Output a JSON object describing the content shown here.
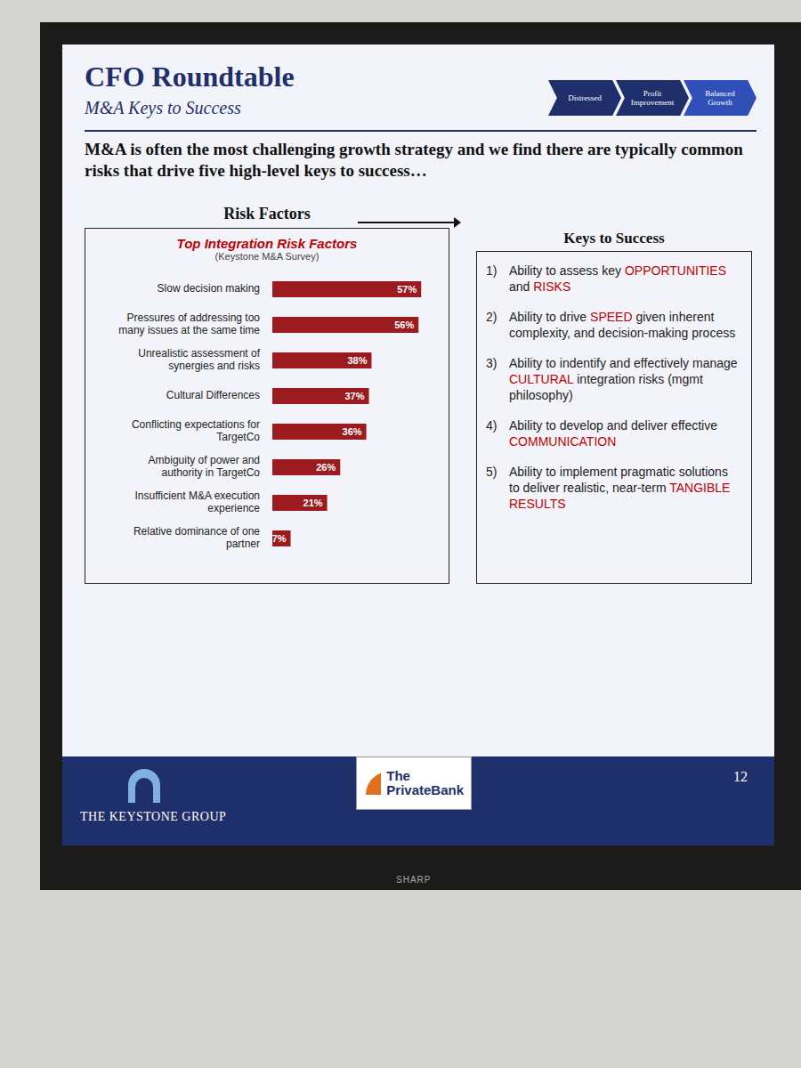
{
  "chart_data": {
    "type": "bar",
    "orientation": "horizontal",
    "title": "Top Integration Risk Factors",
    "subtitle": "(Keystone M&A Survey)",
    "categories": [
      "Slow decision making",
      "Pressures of addressing too many issues at the same time",
      "Unrealistic assessment of synergies and risks",
      "Cultural Differences",
      "Conflicting expectations for TargetCo",
      "Ambiguity of power and authority in TargetCo",
      "Insufficient M&A execution experience",
      "Relative dominance of one partner"
    ],
    "values": [
      57,
      56,
      38,
      37,
      36,
      26,
      21,
      7
    ],
    "value_labels": [
      "57%",
      "56%",
      "38%",
      "37%",
      "36%",
      "26%",
      "21%",
      "7%"
    ],
    "color": "#9b1b1e",
    "xlim": [
      0,
      60
    ],
    "data_labels": true,
    "tick_labels": "y",
    "grid": false
  },
  "slide": {
    "title": "CFO Roundtable",
    "subtitle": "M&A Keys to Success",
    "headline": "M&A is often the most challenging growth strategy and we find there are typically common risks that drive five high-level keys to success…",
    "stages": [
      "Distressed",
      "Profit Improvement",
      "Balanced Growth"
    ],
    "left_heading": "Risk Factors",
    "right_heading": "Keys to Success",
    "keys": [
      {
        "number": "1)",
        "parts": [
          {
            "text": "Ability to assess key "
          },
          {
            "text": "OPPORTUNITIES",
            "emphasis": true
          },
          {
            "text": " and "
          },
          {
            "text": "RISKS",
            "emphasis": true
          }
        ]
      },
      {
        "number": "2)",
        "parts": [
          {
            "text": "Ability to drive "
          },
          {
            "text": "SPEED",
            "emphasis": true
          },
          {
            "text": " given inherent complexity, and decision-making process"
          }
        ]
      },
      {
        "number": "3)",
        "parts": [
          {
            "text": "Ability to indentify and effectively manage "
          },
          {
            "text": "CULTURAL",
            "emphasis": true
          },
          {
            "text": " integration risks (mgmt philosophy)"
          }
        ]
      },
      {
        "number": "4)",
        "parts": [
          {
            "text": "Ability to develop and deliver effective "
          },
          {
            "text": "COMMUNICATION",
            "emphasis": true
          }
        ]
      },
      {
        "number": "5)",
        "parts": [
          {
            "text": "Ability to implement pragmatic solutions to deliver realistic, near-term "
          },
          {
            "text": "TANGIBLE RESULTS",
            "emphasis": true
          }
        ]
      }
    ],
    "page_number": 12,
    "logos": [
      "THE KEYSTONE GROUP",
      "The PrivateBank"
    ],
    "tv_brand": "SHARP"
  }
}
